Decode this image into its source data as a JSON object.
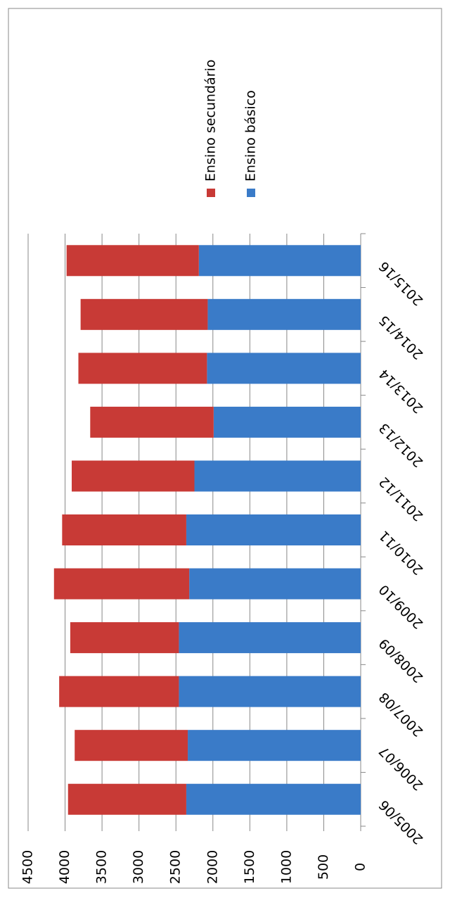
{
  "chart_data": {
    "type": "stacked_bar",
    "categories": [
      "2005/06",
      "2006/07",
      "2007/08",
      "2008/09",
      "2009/10",
      "2010/11",
      "2011/12",
      "2012/13",
      "2013/14",
      "2014/15",
      "2015/16"
    ],
    "series": [
      {
        "name": "Ensino básico",
        "color": "#3a7bc8",
        "values": [
          2360,
          2340,
          2460,
          2460,
          2320,
          2360,
          2250,
          1990,
          2080,
          2070,
          2190
        ]
      },
      {
        "name": "Ensino secundário",
        "color": "#c83a36",
        "values": [
          1600,
          1530,
          1620,
          1470,
          1830,
          1680,
          1660,
          1670,
          1740,
          1720,
          1790
        ]
      }
    ],
    "ylim": [
      0,
      4500
    ],
    "yticks": [
      0,
      500,
      1000,
      1500,
      2000,
      2500,
      3000,
      3500,
      4000,
      4500
    ],
    "grid": true
  }
}
